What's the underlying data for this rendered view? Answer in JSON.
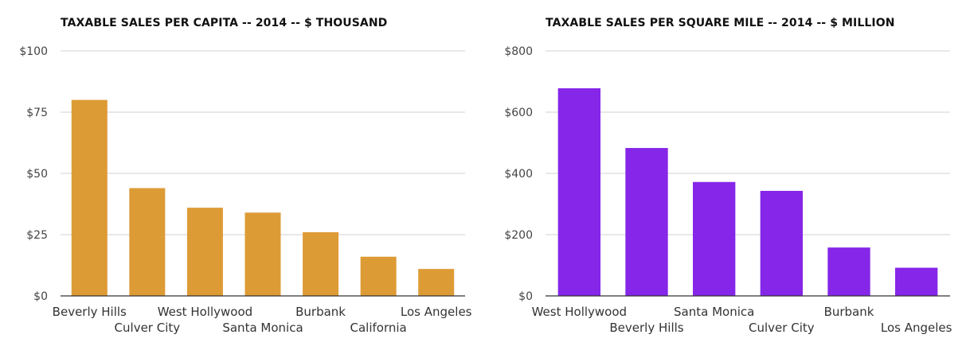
{
  "chart_data": [
    {
      "type": "bar",
      "title": "TAXABLE SALES PER CAPITA -- 2014 -- $ THOUSAND",
      "categories": [
        "Beverly Hills",
        "Culver City",
        "West Hollywood",
        "Santa Monica",
        "Burbank",
        "California",
        "Los Angeles"
      ],
      "values": [
        80,
        44,
        36,
        34,
        26,
        16,
        11
      ],
      "yticks": [
        0,
        25,
        50,
        75,
        100
      ],
      "ytick_labels": [
        "$0",
        "$25",
        "$50",
        "$75",
        "$100"
      ],
      "ylim": [
        0,
        100
      ],
      "xlabel": "",
      "ylabel": "",
      "grid": true,
      "legend": "none",
      "color": "#DD9B36"
    },
    {
      "type": "bar",
      "title": "TAXABLE SALES PER SQUARE MILE -- 2014 -- $ MILLION",
      "categories": [
        "West Hollywood",
        "Beverly Hills",
        "Santa Monica",
        "Culver City",
        "Burbank",
        "Los Angeles"
      ],
      "values": [
        678,
        483,
        372,
        343,
        158,
        92
      ],
      "yticks": [
        0,
        200,
        400,
        600,
        800
      ],
      "ytick_labels": [
        "$0",
        "$200",
        "$400",
        "$600",
        "$800"
      ],
      "ylim": [
        0,
        800
      ],
      "xlabel": "",
      "ylabel": "",
      "grid": true,
      "legend": "none",
      "color": "#8526E8"
    }
  ]
}
